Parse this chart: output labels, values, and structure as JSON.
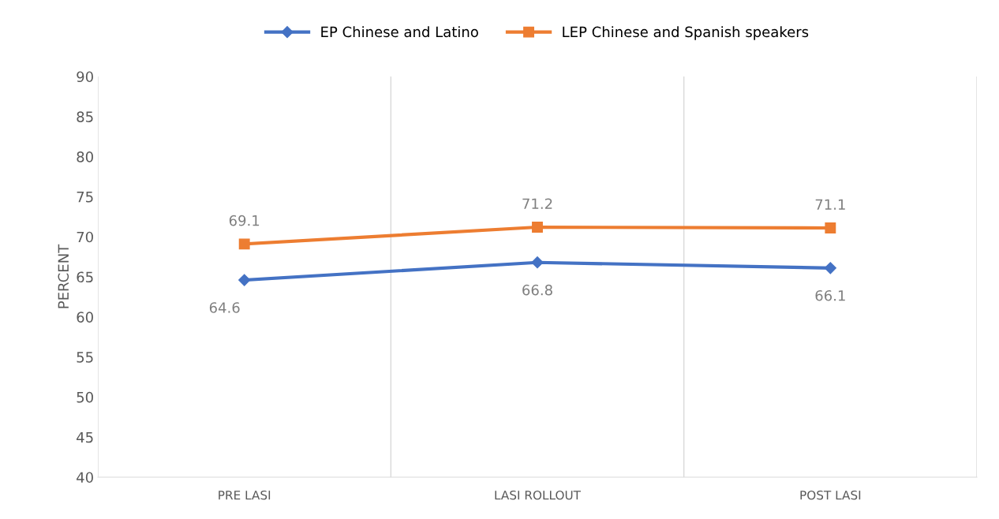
{
  "chart_data": {
    "type": "line",
    "ylabel": "PERCENT",
    "categories": [
      "PRE LASI",
      "LASI ROLLOUT",
      "POST LASI"
    ],
    "series": [
      {
        "name": "EP Chinese and Latino",
        "color": "#4472c4",
        "marker": "diamond",
        "values": [
          64.6,
          66.8,
          66.1
        ]
      },
      {
        "name": "LEP Chinese and Spanish speakers",
        "color": "#ed7d31",
        "marker": "square",
        "values": [
          69.1,
          71.2,
          71.1
        ]
      }
    ],
    "ylim": [
      40,
      90
    ],
    "yticks": [
      40,
      45,
      50,
      55,
      60,
      65,
      70,
      75,
      80,
      85,
      90
    ],
    "grid": "x",
    "legend": "top",
    "data_labels": true
  }
}
